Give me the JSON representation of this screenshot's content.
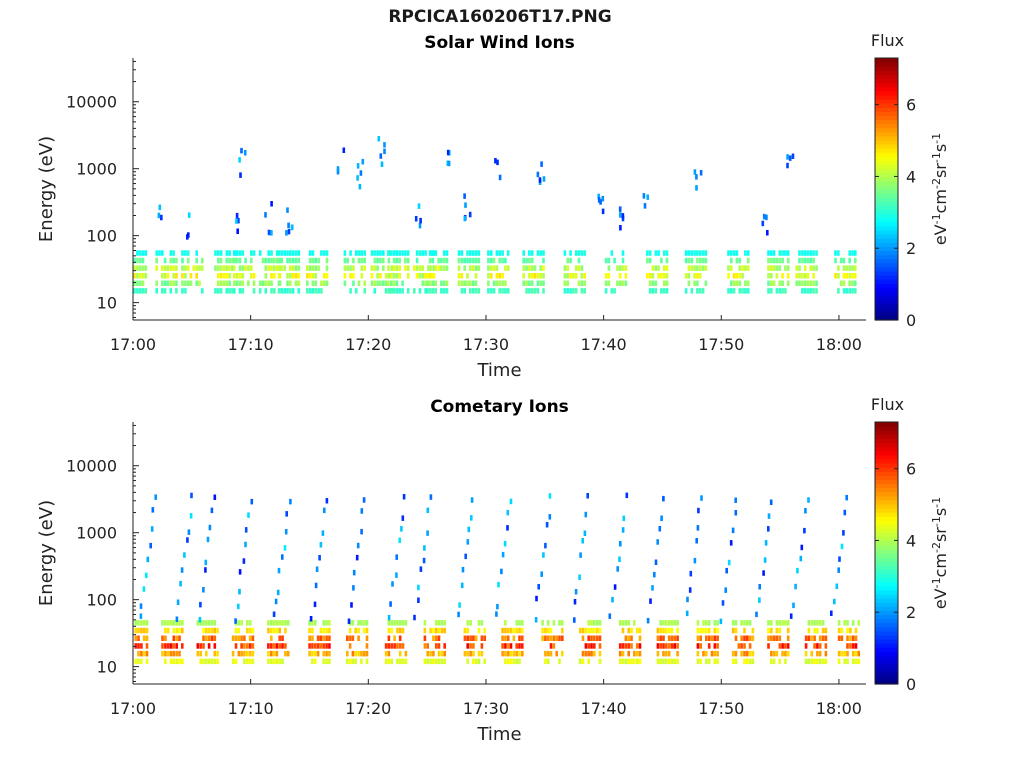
{
  "main_title": "RPCICA160206T17.PNG",
  "colorbar": {
    "title": "Flux",
    "label": "eV-1cm-2sr-1s-1",
    "label_parts": [
      {
        "t": "eV",
        "sup": false
      },
      {
        "t": "-1",
        "sup": true
      },
      {
        "t": "cm",
        "sup": false
      },
      {
        "t": "-2",
        "sup": true
      },
      {
        "t": "sr",
        "sup": false
      },
      {
        "t": "-1",
        "sup": true
      },
      {
        "t": "s",
        "sup": false
      },
      {
        "t": "-1",
        "sup": true
      }
    ],
    "range": [
      0,
      7.3
    ],
    "ticks": [
      0,
      2,
      4,
      6
    ],
    "colormap": "jet"
  },
  "chart_data": [
    {
      "type": "heatmap",
      "title": "Solar Wind Ions",
      "xlabel": "Time",
      "ylabel": "Energy (eV)",
      "x_ticks": [
        "17:00",
        "17:10",
        "17:20",
        "17:30",
        "17:40",
        "17:50",
        "18:00"
      ],
      "x_tick_minutes": [
        0,
        10,
        20,
        30,
        40,
        50,
        60
      ],
      "xlim_minutes": [
        0,
        62.3
      ],
      "y_scale": "log",
      "y_ticks": [
        10,
        100,
        1000,
        10000
      ],
      "y_tick_labels": [
        "10",
        "100",
        "1000",
        "10000"
      ],
      "ylim": [
        5.5,
        45000
      ],
      "grid": false,
      "series": [
        {
          "band": "low",
          "e_min": 15,
          "e_max": 55,
          "flux_range": [
            2.5,
            5.0
          ],
          "centers_min": [
            0.2,
            2.8,
            5.0,
            7.8,
            9.4,
            11.6,
            13.2,
            15.6,
            18.8,
            21.1,
            22.5,
            24.7,
            25.8,
            28.5,
            31.0,
            34.0,
            37.5,
            41.0,
            44.5,
            47.8,
            51.4,
            54.8,
            57.2,
            60.5
          ]
        },
        {
          "band": "high",
          "e_min": 150,
          "e_max": 2500,
          "flux_range": [
            1.0,
            2.5
          ],
          "centers_min": [
            2.3,
            4.6,
            8.8,
            9.2,
            11.4,
            13.2,
            17.6,
            19.2,
            21.0,
            24.2,
            26.5,
            28.3,
            30.8,
            34.6,
            39.6,
            41.5,
            43.5,
            47.9,
            53.7,
            55.8
          ]
        }
      ]
    },
    {
      "type": "heatmap",
      "title": "Cometary Ions",
      "xlabel": "Time",
      "ylabel": "Energy (eV)",
      "x_ticks": [
        "17:00",
        "17:10",
        "17:20",
        "17:30",
        "17:40",
        "17:50",
        "18:00"
      ],
      "x_tick_minutes": [
        0,
        10,
        20,
        30,
        40,
        50,
        60
      ],
      "xlim_minutes": [
        0,
        62.3
      ],
      "y_scale": "log",
      "y_ticks": [
        10,
        100,
        1000,
        10000
      ],
      "y_tick_labels": [
        "10",
        "100",
        "1000",
        "10000"
      ],
      "ylim": [
        5.5,
        45000
      ],
      "grid": false,
      "series": [
        {
          "band": "low",
          "e_min": 12,
          "e_max": 45,
          "flux_range": [
            3.5,
            6.8
          ],
          "centers_min": [
            0.3,
            3.3,
            6.3,
            9.3,
            12.3,
            15.8,
            19.0,
            22.3,
            25.6,
            29.0,
            32.2,
            35.6,
            38.8,
            42.2,
            45.4,
            48.8,
            51.8,
            54.8,
            58.0,
            60.8
          ]
        },
        {
          "band": "rising_arcs",
          "e_min": 60,
          "e_max": 3500,
          "flux_range": [
            1.0,
            2.6
          ],
          "centers_min": [
            1.2,
            4.3,
            6.2,
            9.3,
            12.6,
            15.8,
            19.0,
            22.4,
            24.6,
            28.2,
            31.4,
            34.8,
            38.0,
            41.2,
            44.4,
            47.6,
            50.6,
            53.6,
            56.6,
            60.0
          ]
        }
      ]
    }
  ]
}
